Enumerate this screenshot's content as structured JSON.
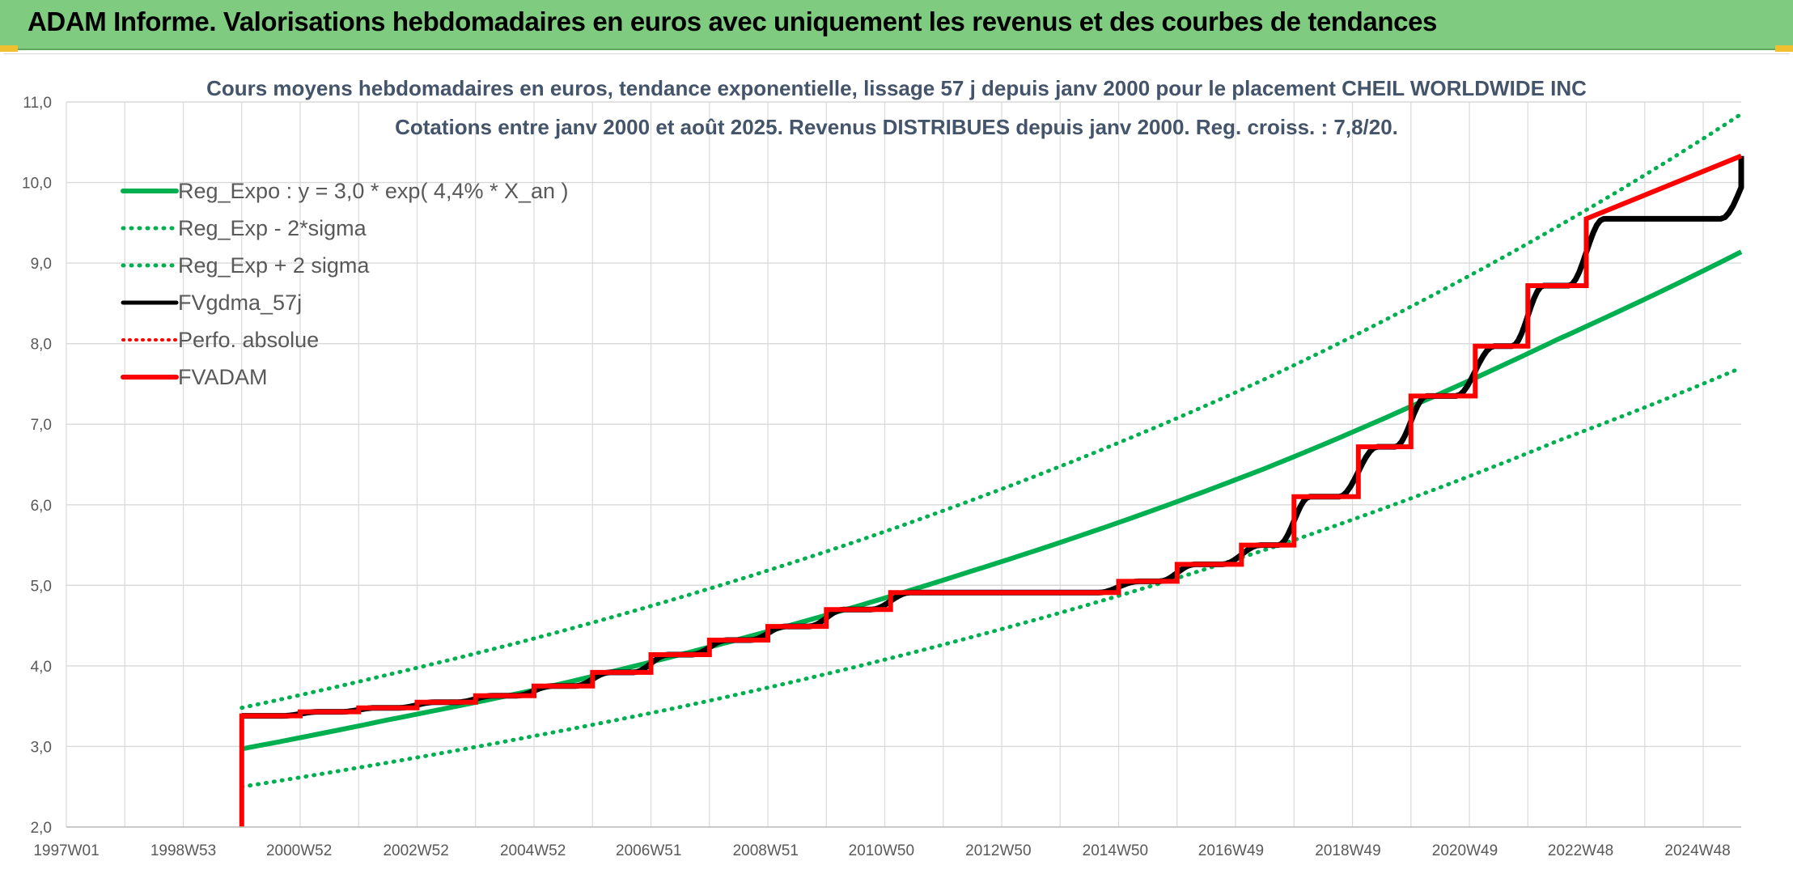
{
  "banner": {
    "title": "ADAM Informe. Valorisations hebdomadaires en euros avec uniquement les revenus et des courbes de tendances"
  },
  "colors": {
    "banner_bg": "#7fcb7f",
    "reg_expo": "#00b050",
    "fvgdma": "#000000",
    "fvadam": "#ff0000",
    "perfo": "#ff0000",
    "grid": "#d9d9d9",
    "title": "#44546a"
  },
  "chart_data": {
    "type": "line",
    "title": "Cours moyens hebdomadaires en euros, tendance exponentielle, lissage 57 j depuis janv 2000 pour le placement CHEIL WORLDWIDE INC",
    "subtitle": "Cotations entre janv 2000 et août 2025. Revenus DISTRIBUES depuis janv 2000. Reg. croiss. : 7,8/20.",
    "xlabel": "",
    "ylabel": "",
    "x_ticks": [
      "1997W01",
      "1998W53",
      "2000W52",
      "2002W52",
      "2004W52",
      "2006W51",
      "2008W51",
      "2010W50",
      "2012W50",
      "2014W50",
      "2016W49",
      "2018W49",
      "2020W49",
      "2022W48",
      "2024W48"
    ],
    "x_range": [
      1997.0,
      2025.65
    ],
    "y_ticks": [
      "2,0",
      "3,0",
      "4,0",
      "5,0",
      "6,0",
      "7,0",
      "8,0",
      "9,0",
      "10,0",
      "11,0"
    ],
    "ylim": [
      2.0,
      11.0
    ],
    "grid": true,
    "legend_position": "top-left",
    "series": [
      {
        "name": "Reg_Expo : y = 3,0 * exp( 4,4% *  X_an )",
        "style": "solid-thick",
        "x": [
          2000.0,
          2002.5,
          2005.0,
          2007.5,
          2010.0,
          2012.5,
          2015.0,
          2017.5,
          2020.0,
          2022.5,
          2025.65
        ],
        "y": [
          2.97,
          3.33,
          3.7,
          4.14,
          4.63,
          5.18,
          5.78,
          6.45,
          7.22,
          8.05,
          9.14
        ]
      },
      {
        "name": "Reg_Exp - 2*sigma",
        "style": "dotted",
        "x": [
          2000.0,
          2002.5,
          2005.0,
          2007.5,
          2010.0,
          2012.5,
          2015.0,
          2017.5,
          2020.0,
          2022.5,
          2025.65
        ],
        "y": [
          2.5,
          2.8,
          3.13,
          3.49,
          3.9,
          4.36,
          4.87,
          5.44,
          6.08,
          6.79,
          7.7
        ]
      },
      {
        "name": "Reg_Exp + 2 sigma",
        "style": "dotted",
        "x": [
          2000.0,
          2002.5,
          2005.0,
          2007.5,
          2010.0,
          2012.5,
          2015.0,
          2017.5,
          2020.0,
          2022.5,
          2025.65
        ],
        "y": [
          3.48,
          3.89,
          4.34,
          4.85,
          5.42,
          6.06,
          6.77,
          7.56,
          8.46,
          9.45,
          10.85
        ]
      },
      {
        "name": "FVgdma_57j",
        "style": "solid-smooth",
        "x": [
          2000.0,
          2001.0,
          2002.0,
          2003.0,
          2004.0,
          2005.0,
          2006.0,
          2007.0,
          2008.0,
          2009.0,
          2010.0,
          2011.1,
          2015.0,
          2016.0,
          2017.1,
          2018.0,
          2019.1,
          2020.0,
          2021.1,
          2022.0,
          2023.0,
          2025.65
        ],
        "y": [
          3.38,
          3.43,
          3.48,
          3.55,
          3.63,
          3.75,
          3.92,
          4.14,
          4.32,
          4.49,
          4.7,
          4.91,
          5.05,
          5.26,
          5.5,
          6.1,
          6.72,
          7.35,
          7.97,
          8.72,
          9.55,
          10.33
        ]
      },
      {
        "name": "Perfo. absolue",
        "style": "dotted",
        "x": [],
        "y": []
      },
      {
        "name": "FVADAM",
        "style": "step-thick",
        "x": [
          2000.0,
          2001.0,
          2002.0,
          2003.0,
          2004.0,
          2005.0,
          2006.0,
          2007.0,
          2008.0,
          2009.0,
          2010.0,
          2011.1,
          2015.0,
          2016.0,
          2017.1,
          2018.0,
          2019.1,
          2020.0,
          2021.1,
          2022.0,
          2023.0,
          2025.65
        ],
        "y": [
          3.38,
          3.43,
          3.48,
          3.55,
          3.63,
          3.75,
          3.92,
          4.14,
          4.32,
          4.49,
          4.7,
          4.91,
          5.05,
          5.26,
          5.5,
          6.1,
          6.72,
          7.35,
          7.97,
          8.72,
          9.55,
          10.33
        ]
      }
    ]
  }
}
